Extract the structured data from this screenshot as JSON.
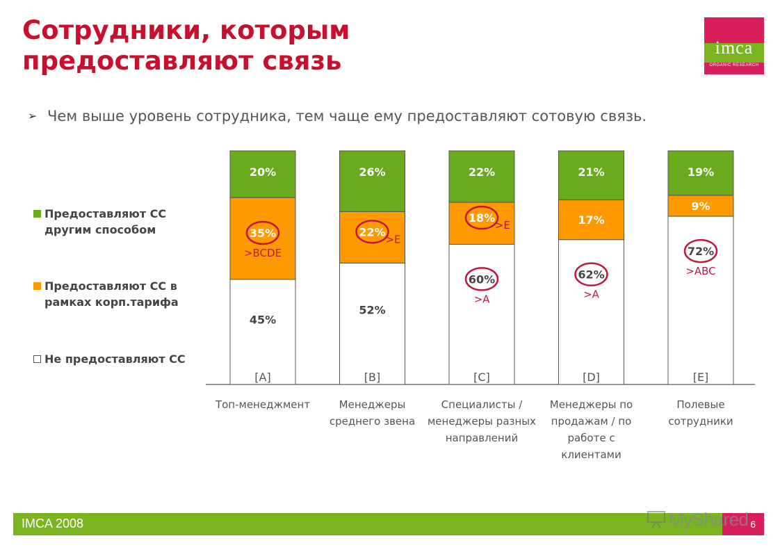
{
  "title": "Сотрудники, которым предоставляют связь",
  "logo": {
    "text": "imca",
    "subtitle": "ORGANIC RESEARCH"
  },
  "bullet": "Чем выше уровень сотрудника, тем чаще ему предоставляют сотовую связь.",
  "footer": {
    "text": "IMCA 2008",
    "page": "6",
    "watermark": "MyShared"
  },
  "colors": {
    "green": "#6aaa1e",
    "orange": "#ff9900",
    "white": "#ffffff",
    "accent": "#c8102e",
    "circle": "#c0183c"
  },
  "chart_data": {
    "type": "bar",
    "stacked": true,
    "legend": [
      {
        "label": "Предоставляют СС другим способом",
        "color": "#6aaa1e"
      },
      {
        "label": "Предоставляют СС в рамках корп.тарифа",
        "color": "#ff9900"
      },
      {
        "label": "Не предоставляют СС",
        "color": "#ffffff"
      }
    ],
    "categories": [
      "Топ-менеджмент",
      "Менеджеры среднего звена",
      "Специалисты / менеджеры разных направлений",
      "Менеджеры по продажам / по работе с клиентами",
      "Полевые сотрудники"
    ],
    "codes": [
      "[A]",
      "[B]",
      "[C]",
      "[D]",
      "[E]"
    ],
    "series": [
      {
        "name": "Не предоставляют СС",
        "values": [
          45,
          52,
          60,
          62,
          72
        ],
        "labels": [
          "45%",
          "52%",
          "60%",
          "62%",
          "72%"
        ]
      },
      {
        "name": "Предоставляют СС в рамках корп.тарифа",
        "values": [
          35,
          22,
          18,
          17,
          9
        ],
        "labels": [
          "35%",
          "22%",
          "18%",
          "17%",
          "9%"
        ]
      },
      {
        "name": "Предоставляют СС другим способом",
        "values": [
          20,
          26,
          22,
          21,
          19
        ],
        "labels": [
          "20%",
          "26%",
          "22%",
          "21%",
          "19%"
        ]
      }
    ],
    "significance": [
      {
        "bar": 0,
        "series": 1,
        "text": ">BCDE"
      },
      {
        "bar": 1,
        "series": 1,
        "text": ">E"
      },
      {
        "bar": 2,
        "series": 1,
        "text": ">E"
      },
      {
        "bar": 2,
        "series": 0,
        "text": ">A"
      },
      {
        "bar": 3,
        "series": 0,
        "text": ">A"
      },
      {
        "bar": 4,
        "series": 0,
        "text": ">ABC"
      }
    ],
    "ylim": [
      0,
      100
    ]
  }
}
